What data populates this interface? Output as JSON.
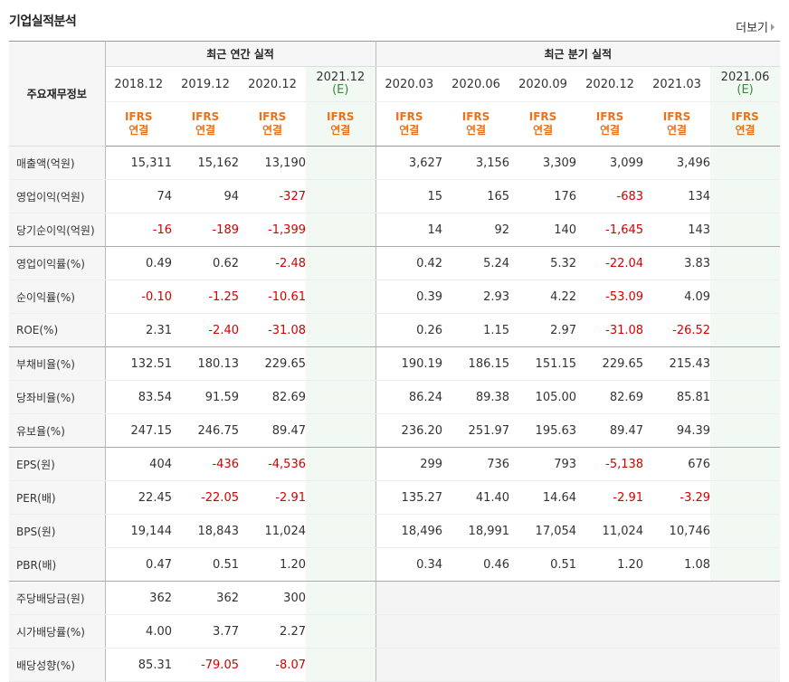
{
  "title": "기업실적분석",
  "more_label": "더보기",
  "header": {
    "label": "주요재무정보",
    "annual_group": "최근 연간 실적",
    "quarter_group": "최근 분기 실적",
    "annual_periods": [
      "2018.12",
      "2019.12",
      "2020.12",
      "2021.12"
    ],
    "annual_est": "(E)",
    "quarter_periods": [
      "2020.03",
      "2020.06",
      "2020.09",
      "2020.12",
      "2021.03",
      "2021.06"
    ],
    "quarter_est": "(E)",
    "std": "IFRS",
    "std2": "연결"
  },
  "rows": [
    {
      "label": "매출액(억원)",
      "annual": [
        "15,311",
        "15,162",
        "13,190",
        ""
      ],
      "quarter": [
        "3,627",
        "3,156",
        "3,309",
        "3,099",
        "3,496",
        ""
      ]
    },
    {
      "label": "영업이익(억원)",
      "annual": [
        "74",
        "94",
        "-327",
        ""
      ],
      "quarter": [
        "15",
        "165",
        "176",
        "-683",
        "134",
        ""
      ]
    },
    {
      "label": "당기순이익(억원)",
      "annual": [
        "-16",
        "-189",
        "-1,399",
        ""
      ],
      "quarter": [
        "14",
        "92",
        "140",
        "-1,645",
        "143",
        ""
      ]
    },
    {
      "label": "영업이익률(%)",
      "annual": [
        "0.49",
        "0.62",
        "-2.48",
        ""
      ],
      "quarter": [
        "0.42",
        "5.24",
        "5.32",
        "-22.04",
        "3.83",
        ""
      ]
    },
    {
      "label": "순이익률(%)",
      "annual": [
        "-0.10",
        "-1.25",
        "-10.61",
        ""
      ],
      "quarter": [
        "0.39",
        "2.93",
        "4.22",
        "-53.09",
        "4.09",
        ""
      ]
    },
    {
      "label": "ROE(%)",
      "annual": [
        "2.31",
        "-2.40",
        "-31.08",
        ""
      ],
      "quarter": [
        "0.26",
        "1.15",
        "2.97",
        "-31.08",
        "-26.52",
        ""
      ]
    },
    {
      "label": "부채비율(%)",
      "annual": [
        "132.51",
        "180.13",
        "229.65",
        ""
      ],
      "quarter": [
        "190.19",
        "186.15",
        "151.15",
        "229.65",
        "215.43",
        ""
      ]
    },
    {
      "label": "당좌비율(%)",
      "annual": [
        "83.54",
        "91.59",
        "82.69",
        ""
      ],
      "quarter": [
        "86.24",
        "89.38",
        "105.00",
        "82.69",
        "85.81",
        ""
      ]
    },
    {
      "label": "유보율(%)",
      "annual": [
        "247.15",
        "246.75",
        "89.47",
        ""
      ],
      "quarter": [
        "236.20",
        "251.97",
        "195.63",
        "89.47",
        "94.39",
        ""
      ]
    },
    {
      "label": "EPS(원)",
      "annual": [
        "404",
        "-436",
        "-4,536",
        ""
      ],
      "quarter": [
        "299",
        "736",
        "793",
        "-5,138",
        "676",
        ""
      ]
    },
    {
      "label": "PER(배)",
      "annual": [
        "22.45",
        "-22.05",
        "-2.91",
        ""
      ],
      "quarter": [
        "135.27",
        "41.40",
        "14.64",
        "-2.91",
        "-3.29",
        ""
      ]
    },
    {
      "label": "BPS(원)",
      "annual": [
        "19,144",
        "18,843",
        "11,024",
        ""
      ],
      "quarter": [
        "18,496",
        "18,991",
        "17,054",
        "11,024",
        "10,746",
        ""
      ]
    },
    {
      "label": "PBR(배)",
      "annual": [
        "0.47",
        "0.51",
        "1.20",
        ""
      ],
      "quarter": [
        "0.34",
        "0.46",
        "0.51",
        "1.20",
        "1.08",
        ""
      ]
    },
    {
      "label": "주당배당금(원)",
      "annual": [
        "362",
        "362",
        "300",
        ""
      ],
      "quarter": []
    },
    {
      "label": "시가배당률(%)",
      "annual": [
        "4.00",
        "3.77",
        "2.27",
        ""
      ],
      "quarter": []
    },
    {
      "label": "배당성향(%)",
      "annual": [
        "85.31",
        "-79.05",
        "-8.07",
        ""
      ],
      "quarter": []
    }
  ],
  "group_ends": [
    2,
    5,
    8,
    12
  ],
  "colors": {
    "negative": "#d40000",
    "ifrs": "#e8731c",
    "estimate_bg": "#f2f9f2",
    "estimate_text": "#3a8a3a"
  }
}
